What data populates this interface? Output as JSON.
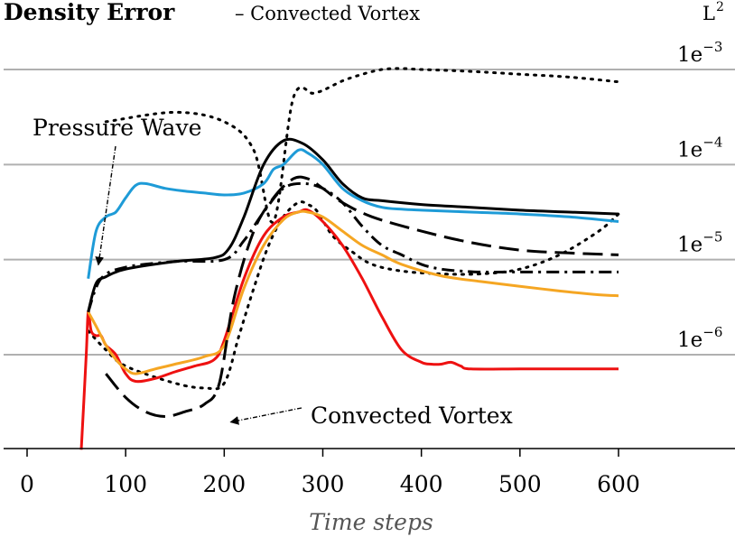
{
  "chart_data": {
    "type": "line",
    "title": "Density Error",
    "subtitle": "– Convected Vortex",
    "norm_label": "L",
    "norm_exponent": "2",
    "xlabel": "Time steps",
    "ylabel": "",
    "yscale": "log",
    "xlim": [
      -30,
      760
    ],
    "ylim": [
      -7.0,
      -2.58
    ],
    "xticks": [
      "0",
      "100",
      "200",
      "300",
      "400",
      "500",
      "600"
    ],
    "xtick_values": [
      0,
      100,
      200,
      300,
      400,
      500,
      600
    ],
    "ytick_values": [
      -3,
      -4,
      -5,
      -6
    ],
    "ytick_labels": [
      {
        "base": "1e",
        "exponent": "−3"
      },
      {
        "base": "1e",
        "exponent": "−4"
      },
      {
        "base": "1e",
        "exponent": "−5"
      },
      {
        "base": "1e",
        "exponent": "−6"
      }
    ],
    "grid": "horizontal",
    "annotations": [
      {
        "text": "Pressure Wave",
        "points_to": [
          65,
          -5.15
        ]
      },
      {
        "text": "Convected Vortex",
        "points_to": [
          190,
          -6.5
        ]
      }
    ],
    "series": [
      {
        "name": "dotted upper",
        "color": "#000000",
        "style": "dotted",
        "x": [
          80,
          150,
          200,
          230,
          250,
          270,
          290,
          300,
          320,
          340,
          360,
          380,
          400,
          450,
          500,
          550,
          600
        ],
        "log10_y": [
          -3.55,
          -3.45,
          -3.55,
          -3.85,
          -4.6,
          -3.3,
          -3.25,
          -3.22,
          -3.12,
          -3.05,
          -3.0,
          -2.99,
          -3.0,
          -3.02,
          -3.05,
          -3.08,
          -3.13
        ]
      },
      {
        "name": "dotted",
        "color": "#000000",
        "style": "dotted",
        "x": [
          62,
          80,
          100,
          150,
          180,
          200,
          215,
          230,
          245,
          260,
          275,
          285,
          295,
          310,
          330,
          350,
          380,
          420,
          460,
          500,
          540,
          580,
          600
        ],
        "log10_y": [
          -5.75,
          -5.95,
          -6.12,
          -6.3,
          -6.35,
          -6.3,
          -5.8,
          -5.3,
          -4.85,
          -4.55,
          -4.4,
          -4.42,
          -4.5,
          -4.75,
          -4.92,
          -5.05,
          -5.12,
          -5.15,
          -5.15,
          -5.1,
          -4.95,
          -4.7,
          -4.52
        ]
      },
      {
        "name": "red",
        "color": "#ee1111",
        "style": "solid",
        "x": [
          55,
          60,
          62,
          65,
          70,
          75,
          80,
          90,
          100,
          110,
          130,
          150,
          170,
          190,
          200,
          220,
          240,
          260,
          275,
          285,
          300,
          320,
          340,
          360,
          380,
          400,
          410,
          420,
          430,
          440,
          450,
          500,
          550,
          600
        ],
        "log10_y": [
          -7.0,
          -6.0,
          -5.55,
          -5.75,
          -5.8,
          -5.8,
          -5.9,
          -6.0,
          -6.2,
          -6.28,
          -6.25,
          -6.18,
          -6.12,
          -6.05,
          -5.85,
          -5.2,
          -4.75,
          -4.55,
          -4.5,
          -4.48,
          -4.6,
          -4.85,
          -5.2,
          -5.6,
          -5.95,
          -6.08,
          -6.1,
          -6.1,
          -6.08,
          -6.12,
          -6.15,
          -6.15,
          -6.15,
          -6.15
        ]
      },
      {
        "name": "orange",
        "color": "#f5a623",
        "style": "solid",
        "x": [
          62,
          70,
          80,
          90,
          100,
          110,
          130,
          150,
          180,
          200,
          220,
          240,
          260,
          275,
          285,
          300,
          320,
          340,
          360,
          380,
          420,
          460,
          500,
          540,
          580,
          600
        ],
        "log10_y": [
          -5.55,
          -5.7,
          -5.9,
          -6.05,
          -6.15,
          -6.2,
          -6.15,
          -6.1,
          -6.02,
          -5.9,
          -5.3,
          -4.85,
          -4.58,
          -4.5,
          -4.5,
          -4.55,
          -4.7,
          -4.85,
          -4.95,
          -5.05,
          -5.17,
          -5.23,
          -5.28,
          -5.33,
          -5.37,
          -5.38
        ]
      },
      {
        "name": "dash-dot",
        "color": "#000000",
        "style": "dashdot",
        "x": [
          62,
          75,
          100,
          150,
          200,
          220,
          240,
          260,
          280,
          300,
          320,
          340,
          360,
          380,
          400,
          420,
          440,
          460,
          500,
          550,
          600
        ],
        "log10_y": [
          -5.55,
          -5.2,
          -5.08,
          -5.02,
          -5.0,
          -4.8,
          -4.5,
          -4.25,
          -4.2,
          -4.25,
          -4.4,
          -4.65,
          -4.85,
          -4.95,
          -5.05,
          -5.1,
          -5.12,
          -5.13,
          -5.13,
          -5.13,
          -5.13
        ]
      },
      {
        "name": "dashed",
        "color": "#000000",
        "style": "dashed",
        "x": [
          80,
          100,
          120,
          140,
          160,
          180,
          195,
          210,
          230,
          250,
          270,
          285,
          300,
          320,
          350,
          400,
          450,
          500,
          550,
          600
        ],
        "log10_y": [
          -6.2,
          -6.45,
          -6.6,
          -6.65,
          -6.6,
          -6.52,
          -6.3,
          -5.4,
          -4.7,
          -4.35,
          -4.15,
          -4.15,
          -4.25,
          -4.4,
          -4.55,
          -4.7,
          -4.82,
          -4.9,
          -4.93,
          -4.95
        ]
      },
      {
        "name": "blue",
        "color": "#1e9bd7",
        "style": "solid",
        "x": [
          62,
          70,
          80,
          90,
          100,
          110,
          120,
          140,
          160,
          180,
          200,
          220,
          240,
          250,
          260,
          275,
          285,
          300,
          320,
          340,
          360,
          380,
          400,
          450,
          500,
          550,
          600
        ],
        "log10_y": [
          -5.2,
          -4.7,
          -4.55,
          -4.5,
          -4.35,
          -4.22,
          -4.2,
          -4.25,
          -4.28,
          -4.3,
          -4.32,
          -4.3,
          -4.2,
          -4.05,
          -4.0,
          -3.85,
          -3.88,
          -4.0,
          -4.25,
          -4.38,
          -4.45,
          -4.47,
          -4.48,
          -4.5,
          -4.52,
          -4.55,
          -4.6
        ]
      },
      {
        "name": "solid black",
        "color": "#000000",
        "style": "solid",
        "x": [
          62,
          70,
          80,
          100,
          150,
          190,
          205,
          220,
          240,
          260,
          280,
          300,
          320,
          340,
          360,
          400,
          450,
          500,
          550,
          600
        ],
        "log10_y": [
          -5.55,
          -5.25,
          -5.18,
          -5.1,
          -5.02,
          -4.98,
          -4.88,
          -4.55,
          -4.0,
          -3.75,
          -3.78,
          -3.95,
          -4.2,
          -4.35,
          -4.38,
          -4.42,
          -4.45,
          -4.48,
          -4.5,
          -4.52
        ]
      }
    ]
  }
}
